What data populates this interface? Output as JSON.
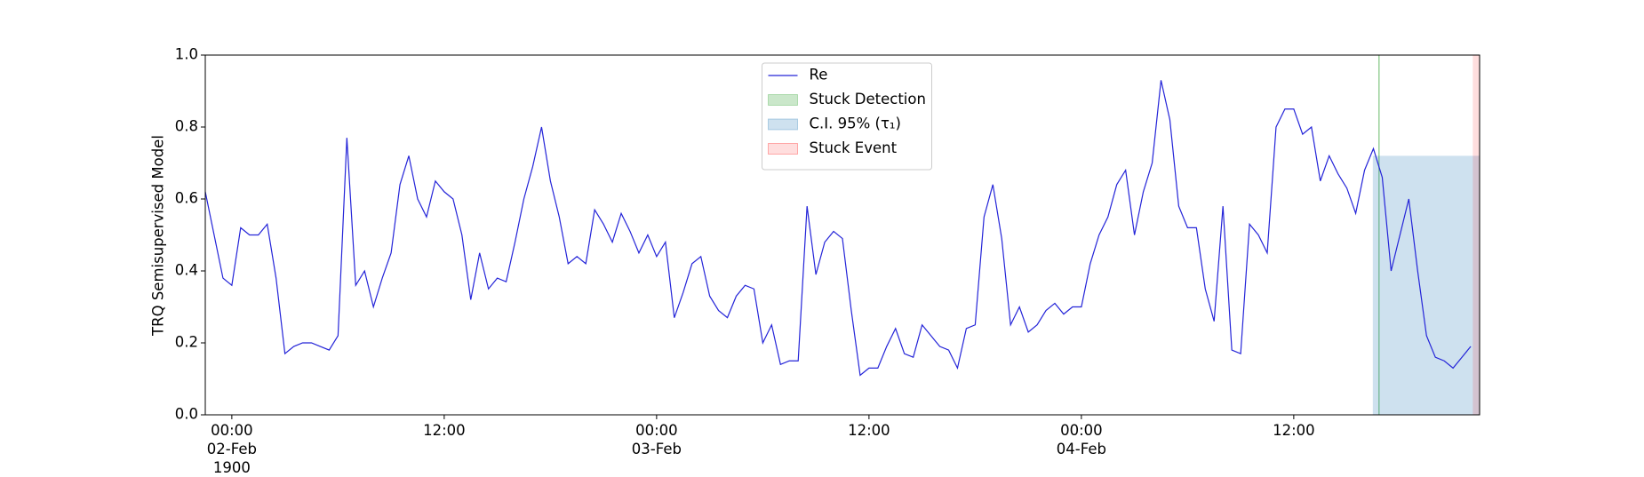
{
  "chart_data": {
    "type": "line",
    "ylabel": "TRQ Semisupervised Model",
    "xlim": [
      "1900-02-01T22:30",
      "1900-02-04T22:30"
    ],
    "xticks": [
      {
        "value": "1900-02-02T00:00",
        "label": "00:00\n02-Feb\n1900"
      },
      {
        "value": "1900-02-02T12:00",
        "label": "12:00"
      },
      {
        "value": "1900-02-03T00:00",
        "label": "00:00\n03-Feb"
      },
      {
        "value": "1900-02-03T12:00",
        "label": "12:00"
      },
      {
        "value": "1900-02-04T00:00",
        "label": "00:00\n04-Feb"
      },
      {
        "value": "1900-02-04T12:00",
        "label": "12:00"
      }
    ],
    "ylim": [
      0,
      1
    ],
    "yticks": [
      {
        "value": 0,
        "label": "0.0"
      },
      0.2,
      0.4,
      0.6,
      0.8,
      {
        "value": 1,
        "label": "1.0"
      }
    ],
    "legend": "upper center",
    "x": [
      "1900-02-01T22:30",
      "1900-02-01T23:00",
      "1900-02-01T23:30",
      "1900-02-02T00:00",
      "1900-02-02T00:30",
      "1900-02-02T01:00",
      "1900-02-02T01:30",
      "1900-02-02T02:00",
      "1900-02-02T02:30",
      "1900-02-02T03:00",
      "1900-02-02T03:30",
      "1900-02-02T04:00",
      "1900-02-02T04:30",
      "1900-02-02T05:00",
      "1900-02-02T05:30",
      "1900-02-02T06:00",
      "1900-02-02T06:30",
      "1900-02-02T07:00",
      "1900-02-02T07:30",
      "1900-02-02T08:00",
      "1900-02-02T08:30",
      "1900-02-02T09:00",
      "1900-02-02T09:30",
      "1900-02-02T10:00",
      "1900-02-02T10:30",
      "1900-02-02T11:00",
      "1900-02-02T11:30",
      "1900-02-02T12:00",
      "1900-02-02T12:30",
      "1900-02-02T13:00",
      "1900-02-02T13:30",
      "1900-02-02T14:00",
      "1900-02-02T14:30",
      "1900-02-02T15:00",
      "1900-02-02T15:30",
      "1900-02-02T16:00",
      "1900-02-02T16:30",
      "1900-02-02T17:00",
      "1900-02-02T17:30",
      "1900-02-02T18:00",
      "1900-02-02T18:30",
      "1900-02-02T19:00",
      "1900-02-02T19:30",
      "1900-02-02T20:00",
      "1900-02-02T20:30",
      "1900-02-02T21:00",
      "1900-02-02T21:30",
      "1900-02-02T22:00",
      "1900-02-02T22:30",
      "1900-02-02T23:00",
      "1900-02-02T23:30",
      "1900-02-03T00:00",
      "1900-02-03T00:30",
      "1900-02-03T01:00",
      "1900-02-03T01:30",
      "1900-02-03T02:00",
      "1900-02-03T02:30",
      "1900-02-03T03:00",
      "1900-02-03T03:30",
      "1900-02-03T04:00",
      "1900-02-03T04:30",
      "1900-02-03T05:00",
      "1900-02-03T05:30",
      "1900-02-03T06:00",
      "1900-02-03T06:30",
      "1900-02-03T07:00",
      "1900-02-03T07:30",
      "1900-02-03T08:00",
      "1900-02-03T08:30",
      "1900-02-03T09:00",
      "1900-02-03T09:30",
      "1900-02-03T10:00",
      "1900-02-03T10:30",
      "1900-02-03T11:00",
      "1900-02-03T11:30",
      "1900-02-03T12:00",
      "1900-02-03T12:30",
      "1900-02-03T13:00",
      "1900-02-03T13:30",
      "1900-02-03T14:00",
      "1900-02-03T14:30",
      "1900-02-03T15:00",
      "1900-02-03T15:30",
      "1900-02-03T16:00",
      "1900-02-03T16:30",
      "1900-02-03T17:00",
      "1900-02-03T17:30",
      "1900-02-03T18:00",
      "1900-02-03T18:30",
      "1900-02-03T19:00",
      "1900-02-03T19:30",
      "1900-02-03T20:00",
      "1900-02-03T20:30",
      "1900-02-03T21:00",
      "1900-02-03T21:30",
      "1900-02-03T22:00",
      "1900-02-03T22:30",
      "1900-02-03T23:00",
      "1900-02-03T23:30",
      "1900-02-04T00:00",
      "1900-02-04T00:30",
      "1900-02-04T01:00",
      "1900-02-04T01:30",
      "1900-02-04T02:00",
      "1900-02-04T02:30",
      "1900-02-04T03:00",
      "1900-02-04T03:30",
      "1900-02-04T04:00",
      "1900-02-04T04:30",
      "1900-02-04T05:00",
      "1900-02-04T05:30",
      "1900-02-04T06:00",
      "1900-02-04T06:30",
      "1900-02-04T07:00",
      "1900-02-04T07:30",
      "1900-02-04T08:00",
      "1900-02-04T08:30",
      "1900-02-04T09:00",
      "1900-02-04T09:30",
      "1900-02-04T10:00",
      "1900-02-04T10:30",
      "1900-02-04T11:00",
      "1900-02-04T11:30",
      "1900-02-04T12:00",
      "1900-02-04T12:30",
      "1900-02-04T13:00",
      "1900-02-04T13:30",
      "1900-02-04T14:00",
      "1900-02-04T14:30",
      "1900-02-04T15:00",
      "1900-02-04T15:30",
      "1900-02-04T16:00",
      "1900-02-04T16:30",
      "1900-02-04T17:00",
      "1900-02-04T17:30",
      "1900-02-04T18:00",
      "1900-02-04T18:30",
      "1900-02-04T19:00",
      "1900-02-04T19:30",
      "1900-02-04T20:00",
      "1900-02-04T20:30",
      "1900-02-04T21:00",
      "1900-02-04T21:30",
      "1900-02-04T22:00"
    ],
    "series": [
      {
        "name": "Re",
        "color": "#2424d8",
        "values": [
          0.62,
          0.5,
          0.38,
          0.36,
          0.52,
          0.5,
          0.5,
          0.53,
          0.38,
          0.17,
          0.19,
          0.2,
          0.2,
          0.19,
          0.18,
          0.22,
          0.77,
          0.36,
          0.4,
          0.3,
          0.38,
          0.45,
          0.64,
          0.72,
          0.6,
          0.55,
          0.65,
          0.62,
          0.6,
          0.5,
          0.32,
          0.45,
          0.35,
          0.38,
          0.37,
          0.48,
          0.6,
          0.69,
          0.8,
          0.65,
          0.55,
          0.42,
          0.44,
          0.42,
          0.57,
          0.53,
          0.48,
          0.56,
          0.51,
          0.45,
          0.5,
          0.44,
          0.48,
          0.27,
          0.34,
          0.42,
          0.44,
          0.33,
          0.29,
          0.27,
          0.33,
          0.36,
          0.35,
          0.2,
          0.25,
          0.14,
          0.15,
          0.15,
          0.58,
          0.39,
          0.48,
          0.51,
          0.49,
          0.29,
          0.11,
          0.13,
          0.13,
          0.19,
          0.24,
          0.17,
          0.16,
          0.25,
          0.22,
          0.19,
          0.18,
          0.13,
          0.24,
          0.25,
          0.55,
          0.64,
          0.49,
          0.25,
          0.3,
          0.23,
          0.25,
          0.29,
          0.31,
          0.28,
          0.3,
          0.3,
          0.42,
          0.5,
          0.55,
          0.64,
          0.68,
          0.5,
          0.62,
          0.7,
          0.93,
          0.82,
          0.58,
          0.52,
          0.52,
          0.35,
          0.26,
          0.58,
          0.18,
          0.17,
          0.53,
          0.5,
          0.45,
          0.8,
          0.85,
          0.85,
          0.78,
          0.8,
          0.65,
          0.72,
          0.67,
          0.63,
          0.56,
          0.68,
          0.74,
          0.66,
          0.4,
          0.5,
          0.6,
          0.4,
          0.22,
          0.16,
          0.15,
          0.13,
          0.16,
          0.19
        ]
      }
    ],
    "spans": [
      {
        "name": "Stuck Detection",
        "color": "#2ca02c",
        "alpha": 0.55,
        "x0": "1900-02-04T16:47",
        "x1": "1900-02-04T16:51"
      },
      {
        "name": "C.I. 95% (τ₁)",
        "color": "#1f77b4",
        "alpha": 0.22,
        "x0": "1900-02-04T16:28",
        "x1": "1900-02-04T22:30",
        "ymax": 0.72
      },
      {
        "name": "Stuck Event",
        "color": "#ff0000",
        "alpha": 0.13,
        "x0": "1900-02-04T22:07",
        "x1": "1900-02-04T22:30"
      }
    ]
  }
}
